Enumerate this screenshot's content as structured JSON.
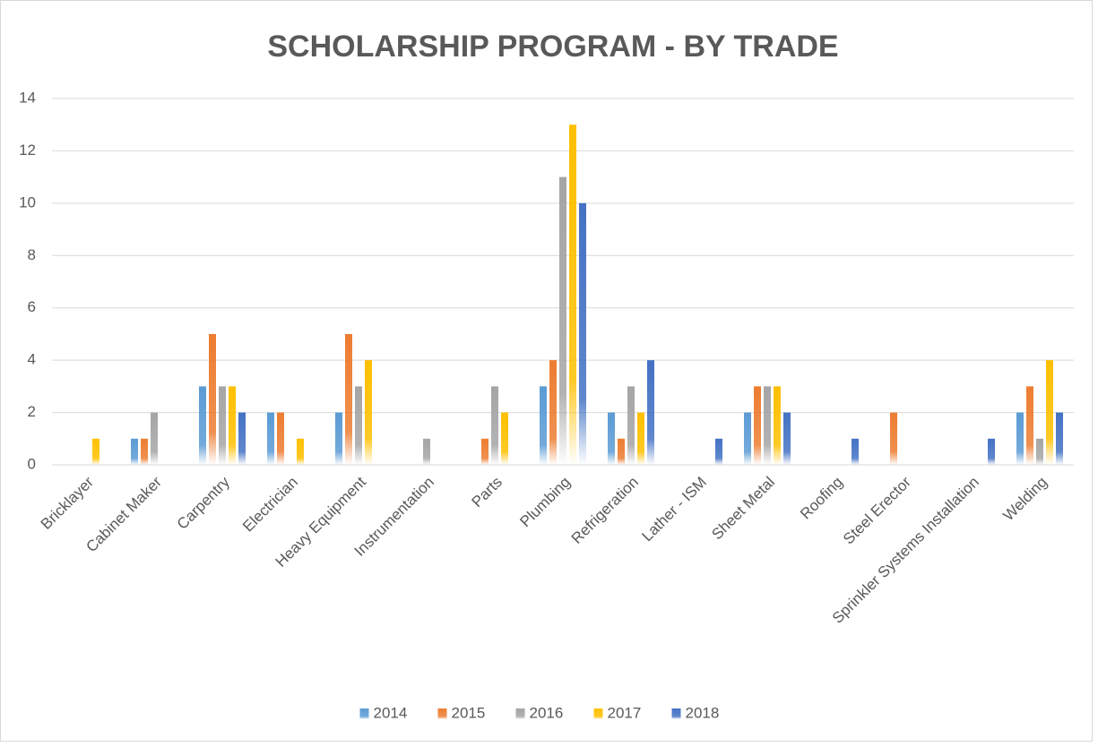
{
  "chart_data": {
    "type": "bar",
    "title": "SCHOLARSHIP PROGRAM - BY TRADE",
    "categories": [
      "Bricklayer",
      "Cabinet Maker",
      "Carpentry",
      "Electrician",
      "Heavy Equipment",
      "Instrumentation",
      "Parts",
      "Plumbing",
      "Refrigeration",
      "Lather - ISM",
      "Sheet Metal",
      "Roofing",
      "Steel Erector",
      "Sprinkler Systems Installation",
      "Welding"
    ],
    "series": [
      {
        "name": "2014",
        "color": "#5b9bd5",
        "values": [
          0,
          1,
          3,
          2,
          2,
          0,
          0,
          3,
          2,
          0,
          2,
          0,
          0,
          0,
          2
        ]
      },
      {
        "name": "2015",
        "color": "#ed7d31",
        "values": [
          0,
          1,
          5,
          2,
          5,
          0,
          1,
          4,
          1,
          0,
          3,
          0,
          2,
          0,
          3
        ]
      },
      {
        "name": "2016",
        "color": "#a5a5a5",
        "values": [
          0,
          2,
          3,
          0,
          3,
          1,
          3,
          11,
          3,
          0,
          3,
          0,
          0,
          0,
          1
        ]
      },
      {
        "name": "2017",
        "color": "#ffc000",
        "values": [
          1,
          0,
          3,
          1,
          4,
          0,
          2,
          13,
          2,
          0,
          3,
          0,
          0,
          0,
          4
        ]
      },
      {
        "name": "2018",
        "color": "#4472c4",
        "values": [
          0,
          0,
          2,
          0,
          0,
          0,
          0,
          10,
          4,
          1,
          2,
          1,
          0,
          1,
          2
        ]
      }
    ],
    "ylim": [
      0,
      14
    ],
    "yticks": [
      0,
      2,
      4,
      6,
      8,
      10,
      12,
      14
    ],
    "grid": true,
    "legend": "bottom"
  }
}
